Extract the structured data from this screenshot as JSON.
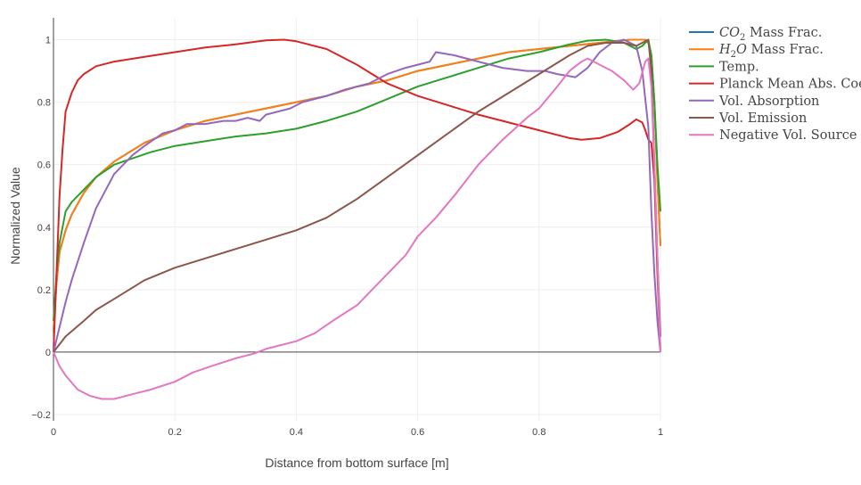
{
  "chart_data": {
    "type": "line",
    "xlabel": "Distance from bottom surface [m]",
    "ylabel": "Normalized Value",
    "xlim": [
      0,
      1
    ],
    "ylim": [
      -0.22,
      1.07
    ],
    "x_ticks": [
      "0",
      "0.2",
      "0.4",
      "0.6",
      "0.8",
      "1"
    ],
    "y_ticks": [
      "−0.2",
      "0",
      "0.2",
      "0.4",
      "0.6",
      "0.8",
      "1"
    ],
    "grid": true,
    "legend_position": "right",
    "series": [
      {
        "name": "CO2 Mass Frac.",
        "legend_main": "CO",
        "legend_sub": "2",
        "legend_rest": " Mass Frac.",
        "color": "#1f77b4",
        "x": [
          0,
          0.005,
          0.01,
          0.02,
          0.03,
          0.05,
          0.07,
          0.1,
          0.15,
          0.2,
          0.25,
          0.3,
          0.35,
          0.4,
          0.45,
          0.5,
          0.55,
          0.6,
          0.65,
          0.7,
          0.75,
          0.8,
          0.85,
          0.9,
          0.95,
          0.97,
          0.975,
          0.98,
          0.985,
          0.99,
          0.995,
          1.0
        ],
        "y": [
          0.07,
          0.22,
          0.32,
          0.39,
          0.44,
          0.51,
          0.56,
          0.61,
          0.67,
          0.71,
          0.74,
          0.76,
          0.78,
          0.8,
          0.82,
          0.85,
          0.87,
          0.9,
          0.92,
          0.94,
          0.96,
          0.97,
          0.98,
          0.99,
          1.0,
          1.0,
          1.0,
          0.99,
          0.95,
          0.8,
          0.55,
          0.34
        ]
      },
      {
        "name": "H2O Mass Frac.",
        "legend_main": "H",
        "legend_sub": "2",
        "legend_rest": "O Mass Frac.",
        "color": "#ff7f0e",
        "x": [
          0,
          0.005,
          0.01,
          0.02,
          0.03,
          0.05,
          0.07,
          0.1,
          0.15,
          0.2,
          0.25,
          0.3,
          0.35,
          0.4,
          0.45,
          0.5,
          0.55,
          0.6,
          0.65,
          0.7,
          0.75,
          0.8,
          0.85,
          0.9,
          0.95,
          0.97,
          0.975,
          0.98,
          0.985,
          0.99,
          0.995,
          1.0
        ],
        "y": [
          0.07,
          0.22,
          0.32,
          0.39,
          0.44,
          0.51,
          0.56,
          0.61,
          0.67,
          0.71,
          0.74,
          0.76,
          0.78,
          0.8,
          0.82,
          0.85,
          0.87,
          0.9,
          0.92,
          0.94,
          0.96,
          0.97,
          0.98,
          0.99,
          1.0,
          1.0,
          1.0,
          0.99,
          0.95,
          0.8,
          0.55,
          0.34
        ]
      },
      {
        "name": "Temp.",
        "legend_main": "Temp.",
        "legend_sub": "",
        "legend_rest": "",
        "color": "#2ca02c",
        "x": [
          0,
          0.005,
          0.01,
          0.02,
          0.03,
          0.05,
          0.07,
          0.1,
          0.13,
          0.16,
          0.2,
          0.25,
          0.3,
          0.35,
          0.4,
          0.45,
          0.5,
          0.55,
          0.6,
          0.65,
          0.7,
          0.75,
          0.8,
          0.85,
          0.88,
          0.91,
          0.94,
          0.96,
          0.97,
          0.98,
          0.985,
          0.99,
          0.995,
          1.0
        ],
        "y": [
          0.1,
          0.25,
          0.35,
          0.45,
          0.48,
          0.52,
          0.56,
          0.6,
          0.62,
          0.64,
          0.66,
          0.675,
          0.69,
          0.7,
          0.715,
          0.74,
          0.77,
          0.81,
          0.85,
          0.88,
          0.91,
          0.94,
          0.96,
          0.985,
          0.997,
          1.0,
          0.99,
          0.97,
          0.98,
          1.0,
          0.95,
          0.8,
          0.6,
          0.45
        ]
      },
      {
        "name": "Planck Mean Abs. Coef.",
        "legend_main": "Planck Mean Abs. Coef.",
        "legend_sub": "",
        "legend_rest": "",
        "color": "#d62728",
        "x": [
          0,
          0.005,
          0.01,
          0.015,
          0.02,
          0.03,
          0.04,
          0.05,
          0.07,
          0.1,
          0.15,
          0.2,
          0.25,
          0.3,
          0.35,
          0.38,
          0.4,
          0.45,
          0.5,
          0.55,
          0.6,
          0.65,
          0.7,
          0.75,
          0.8,
          0.85,
          0.87,
          0.9,
          0.93,
          0.95,
          0.96,
          0.97,
          0.975,
          0.98,
          0.985,
          0.99,
          0.995,
          1.0
        ],
        "y": [
          0.0,
          0.25,
          0.5,
          0.65,
          0.77,
          0.83,
          0.87,
          0.89,
          0.915,
          0.93,
          0.945,
          0.96,
          0.975,
          0.985,
          0.998,
          1.0,
          0.995,
          0.97,
          0.92,
          0.86,
          0.82,
          0.79,
          0.76,
          0.735,
          0.71,
          0.685,
          0.68,
          0.685,
          0.705,
          0.73,
          0.745,
          0.735,
          0.71,
          0.68,
          0.67,
          0.55,
          0.25,
          0.0
        ]
      },
      {
        "name": "Vol. Absorption",
        "legend_main": "Vol. Absorption",
        "legend_sub": "",
        "legend_rest": "",
        "color": "#9467bd",
        "x": [
          0,
          0.01,
          0.02,
          0.03,
          0.05,
          0.07,
          0.1,
          0.13,
          0.15,
          0.18,
          0.2,
          0.22,
          0.25,
          0.28,
          0.3,
          0.32,
          0.34,
          0.35,
          0.37,
          0.39,
          0.41,
          0.43,
          0.45,
          0.48,
          0.5,
          0.52,
          0.55,
          0.58,
          0.6,
          0.62,
          0.63,
          0.66,
          0.7,
          0.74,
          0.78,
          0.81,
          0.83,
          0.86,
          0.88,
          0.9,
          0.92,
          0.94,
          0.96,
          0.97,
          0.98,
          0.985,
          0.99,
          0.995,
          1.0
        ],
        "y": [
          0.0,
          0.08,
          0.16,
          0.23,
          0.35,
          0.46,
          0.57,
          0.63,
          0.66,
          0.7,
          0.71,
          0.73,
          0.73,
          0.74,
          0.74,
          0.75,
          0.74,
          0.76,
          0.77,
          0.78,
          0.8,
          0.81,
          0.82,
          0.84,
          0.85,
          0.86,
          0.89,
          0.91,
          0.92,
          0.93,
          0.96,
          0.95,
          0.93,
          0.91,
          0.9,
          0.9,
          0.89,
          0.88,
          0.91,
          0.96,
          0.99,
          1.0,
          0.98,
          0.9,
          0.72,
          0.45,
          0.25,
          0.1,
          0.0
        ]
      },
      {
        "name": "Vol. Emission",
        "legend_main": "Vol. Emission",
        "legend_sub": "",
        "legend_rest": "",
        "color": "#8c564b",
        "x": [
          0,
          0.02,
          0.05,
          0.07,
          0.1,
          0.15,
          0.2,
          0.25,
          0.3,
          0.35,
          0.4,
          0.45,
          0.5,
          0.55,
          0.6,
          0.65,
          0.7,
          0.75,
          0.8,
          0.85,
          0.88,
          0.91,
          0.94,
          0.96,
          0.97,
          0.98,
          0.985,
          0.99,
          0.995,
          1.0
        ],
        "y": [
          0.0,
          0.05,
          0.1,
          0.135,
          0.17,
          0.23,
          0.27,
          0.3,
          0.33,
          0.36,
          0.39,
          0.43,
          0.49,
          0.56,
          0.63,
          0.7,
          0.77,
          0.83,
          0.89,
          0.95,
          0.98,
          0.99,
          0.99,
          0.98,
          0.99,
          1.0,
          0.9,
          0.6,
          0.3,
          0.05
        ]
      },
      {
        "name": "Negative Vol. Source",
        "legend_main": "Negative Vol. Source",
        "legend_sub": "",
        "legend_rest": "",
        "color": "#e377c2",
        "x": [
          0,
          0.01,
          0.02,
          0.04,
          0.06,
          0.08,
          0.1,
          0.13,
          0.16,
          0.2,
          0.23,
          0.26,
          0.3,
          0.33,
          0.35,
          0.37,
          0.4,
          0.43,
          0.46,
          0.5,
          0.55,
          0.58,
          0.6,
          0.63,
          0.66,
          0.7,
          0.74,
          0.78,
          0.8,
          0.83,
          0.85,
          0.87,
          0.88,
          0.9,
          0.92,
          0.94,
          0.955,
          0.965,
          0.975,
          0.98,
          0.985,
          0.99,
          0.995,
          1.0
        ],
        "y": [
          0.0,
          -0.045,
          -0.075,
          -0.12,
          -0.14,
          -0.15,
          -0.15,
          -0.135,
          -0.12,
          -0.095,
          -0.065,
          -0.045,
          -0.02,
          -0.005,
          0.01,
          0.02,
          0.035,
          0.06,
          0.1,
          0.15,
          0.25,
          0.31,
          0.37,
          0.43,
          0.5,
          0.6,
          0.68,
          0.75,
          0.78,
          0.85,
          0.9,
          0.93,
          0.94,
          0.92,
          0.9,
          0.87,
          0.84,
          0.86,
          0.93,
          0.94,
          0.85,
          0.6,
          0.3,
          0.0
        ]
      }
    ]
  }
}
